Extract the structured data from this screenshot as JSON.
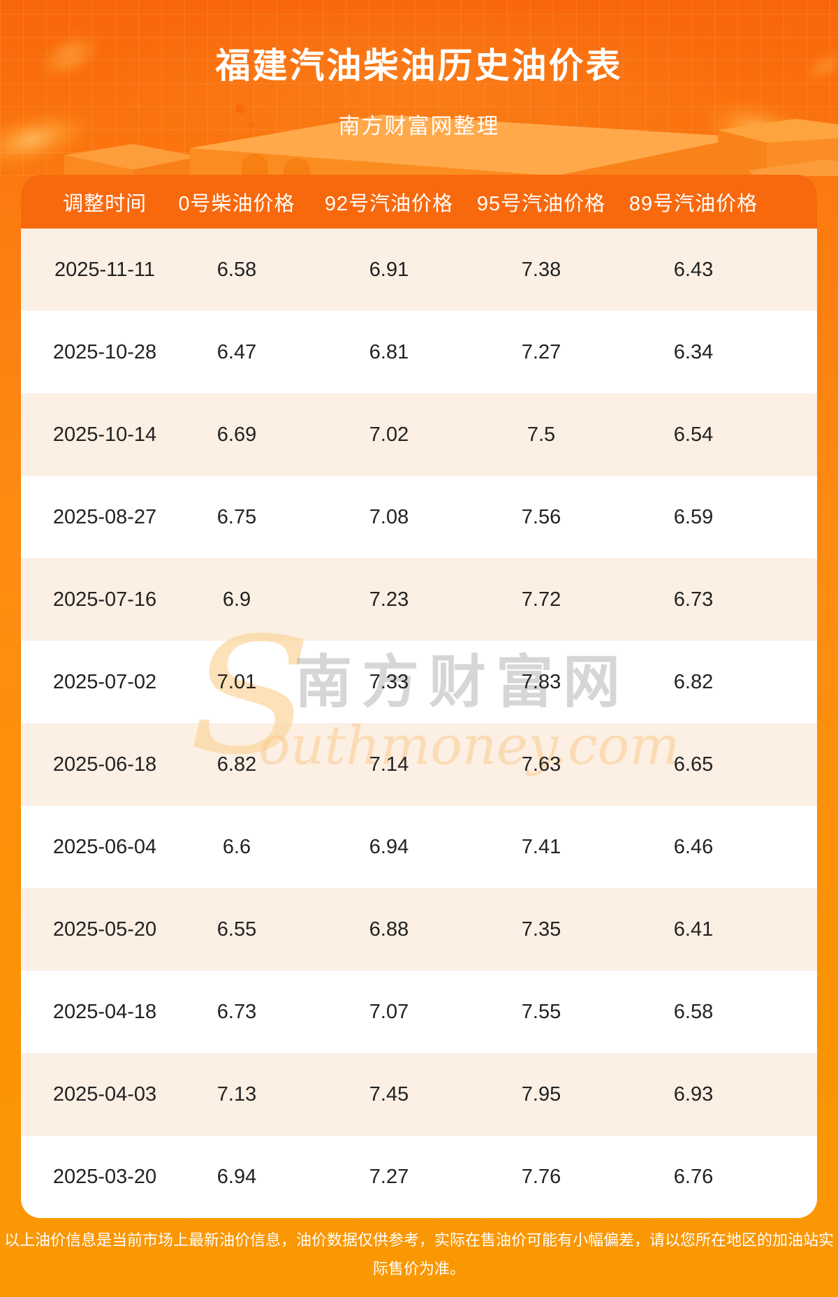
{
  "page": {
    "title": "福建汽油柴油历史油价表",
    "subtitle": "南方财富网整理",
    "footer_disclaimer": "以上油价信息是当前市场上最新油价信息，油价数据仅供参考，实际在售油价可能有小幅偏差，请以您所在地区的加油站实际售价为准。"
  },
  "watermark": {
    "initial": "S",
    "cn_text": "南方财富网",
    "en_text": "outhmoney.com"
  },
  "chart_data": {
    "type": "table",
    "title": "福建汽油柴油历史油价表",
    "columns": [
      "调整时间",
      "0号柴油价格",
      "92号汽油价格",
      "95号汽油价格",
      "89号汽油价格"
    ],
    "rows": [
      [
        "2025-11-11",
        "6.58",
        "6.91",
        "7.38",
        "6.43"
      ],
      [
        "2025-10-28",
        "6.47",
        "6.81",
        "7.27",
        "6.34"
      ],
      [
        "2025-10-14",
        "6.69",
        "7.02",
        "7.5",
        "6.54"
      ],
      [
        "2025-08-27",
        "6.75",
        "7.08",
        "7.56",
        "6.59"
      ],
      [
        "2025-07-16",
        "6.9",
        "7.23",
        "7.72",
        "6.73"
      ],
      [
        "2025-07-02",
        "7.01",
        "7.33",
        "7.83",
        "6.82"
      ],
      [
        "2025-06-18",
        "6.82",
        "7.14",
        "7.63",
        "6.65"
      ],
      [
        "2025-06-04",
        "6.6",
        "6.94",
        "7.41",
        "6.46"
      ],
      [
        "2025-05-20",
        "6.55",
        "6.88",
        "7.35",
        "6.41"
      ],
      [
        "2025-04-18",
        "6.73",
        "7.07",
        "7.55",
        "6.58"
      ],
      [
        "2025-04-03",
        "7.13",
        "7.45",
        "7.95",
        "6.93"
      ],
      [
        "2025-03-20",
        "6.94",
        "7.27",
        "7.76",
        "6.76"
      ]
    ]
  },
  "colors": {
    "page_gradient_top": "#f8660a",
    "page_gradient_bottom": "#fa9803",
    "table_header_bg": "#f8690e",
    "row_alt_bg": "#fcefe4",
    "row_bg": "#ffffff",
    "header_text": "#ffffff",
    "cell_text": "#222222"
  }
}
